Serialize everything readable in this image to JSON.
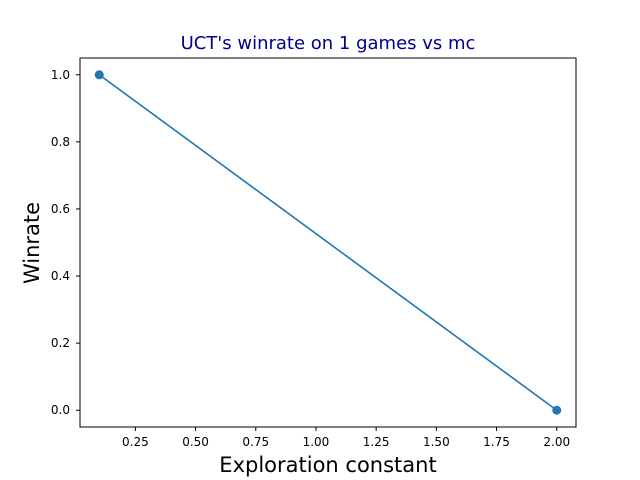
{
  "chart_data": {
    "type": "line",
    "title": "UCT's winrate on 1 games vs mc",
    "xlabel": "Exploration constant",
    "ylabel": "Winrate",
    "xlim": [
      0.02,
      2.08
    ],
    "ylim": [
      -0.05,
      1.05
    ],
    "xticks": [
      0.25,
      0.5,
      0.75,
      1.0,
      1.25,
      1.5,
      1.75,
      2.0
    ],
    "xtick_labels": [
      "0.25",
      "0.50",
      "0.75",
      "1.00",
      "1.25",
      "1.50",
      "1.75",
      "2.00"
    ],
    "yticks": [
      0.0,
      0.2,
      0.4,
      0.6,
      0.8,
      1.0
    ],
    "ytick_labels": [
      "0.0",
      "0.2",
      "0.4",
      "0.6",
      "0.8",
      "1.0"
    ],
    "series": [
      {
        "x": [
          0.1,
          2.0
        ],
        "y": [
          1.0,
          0.0
        ],
        "color": "#1f77b4"
      }
    ],
    "grid": false,
    "title_color": "#00008b"
  }
}
